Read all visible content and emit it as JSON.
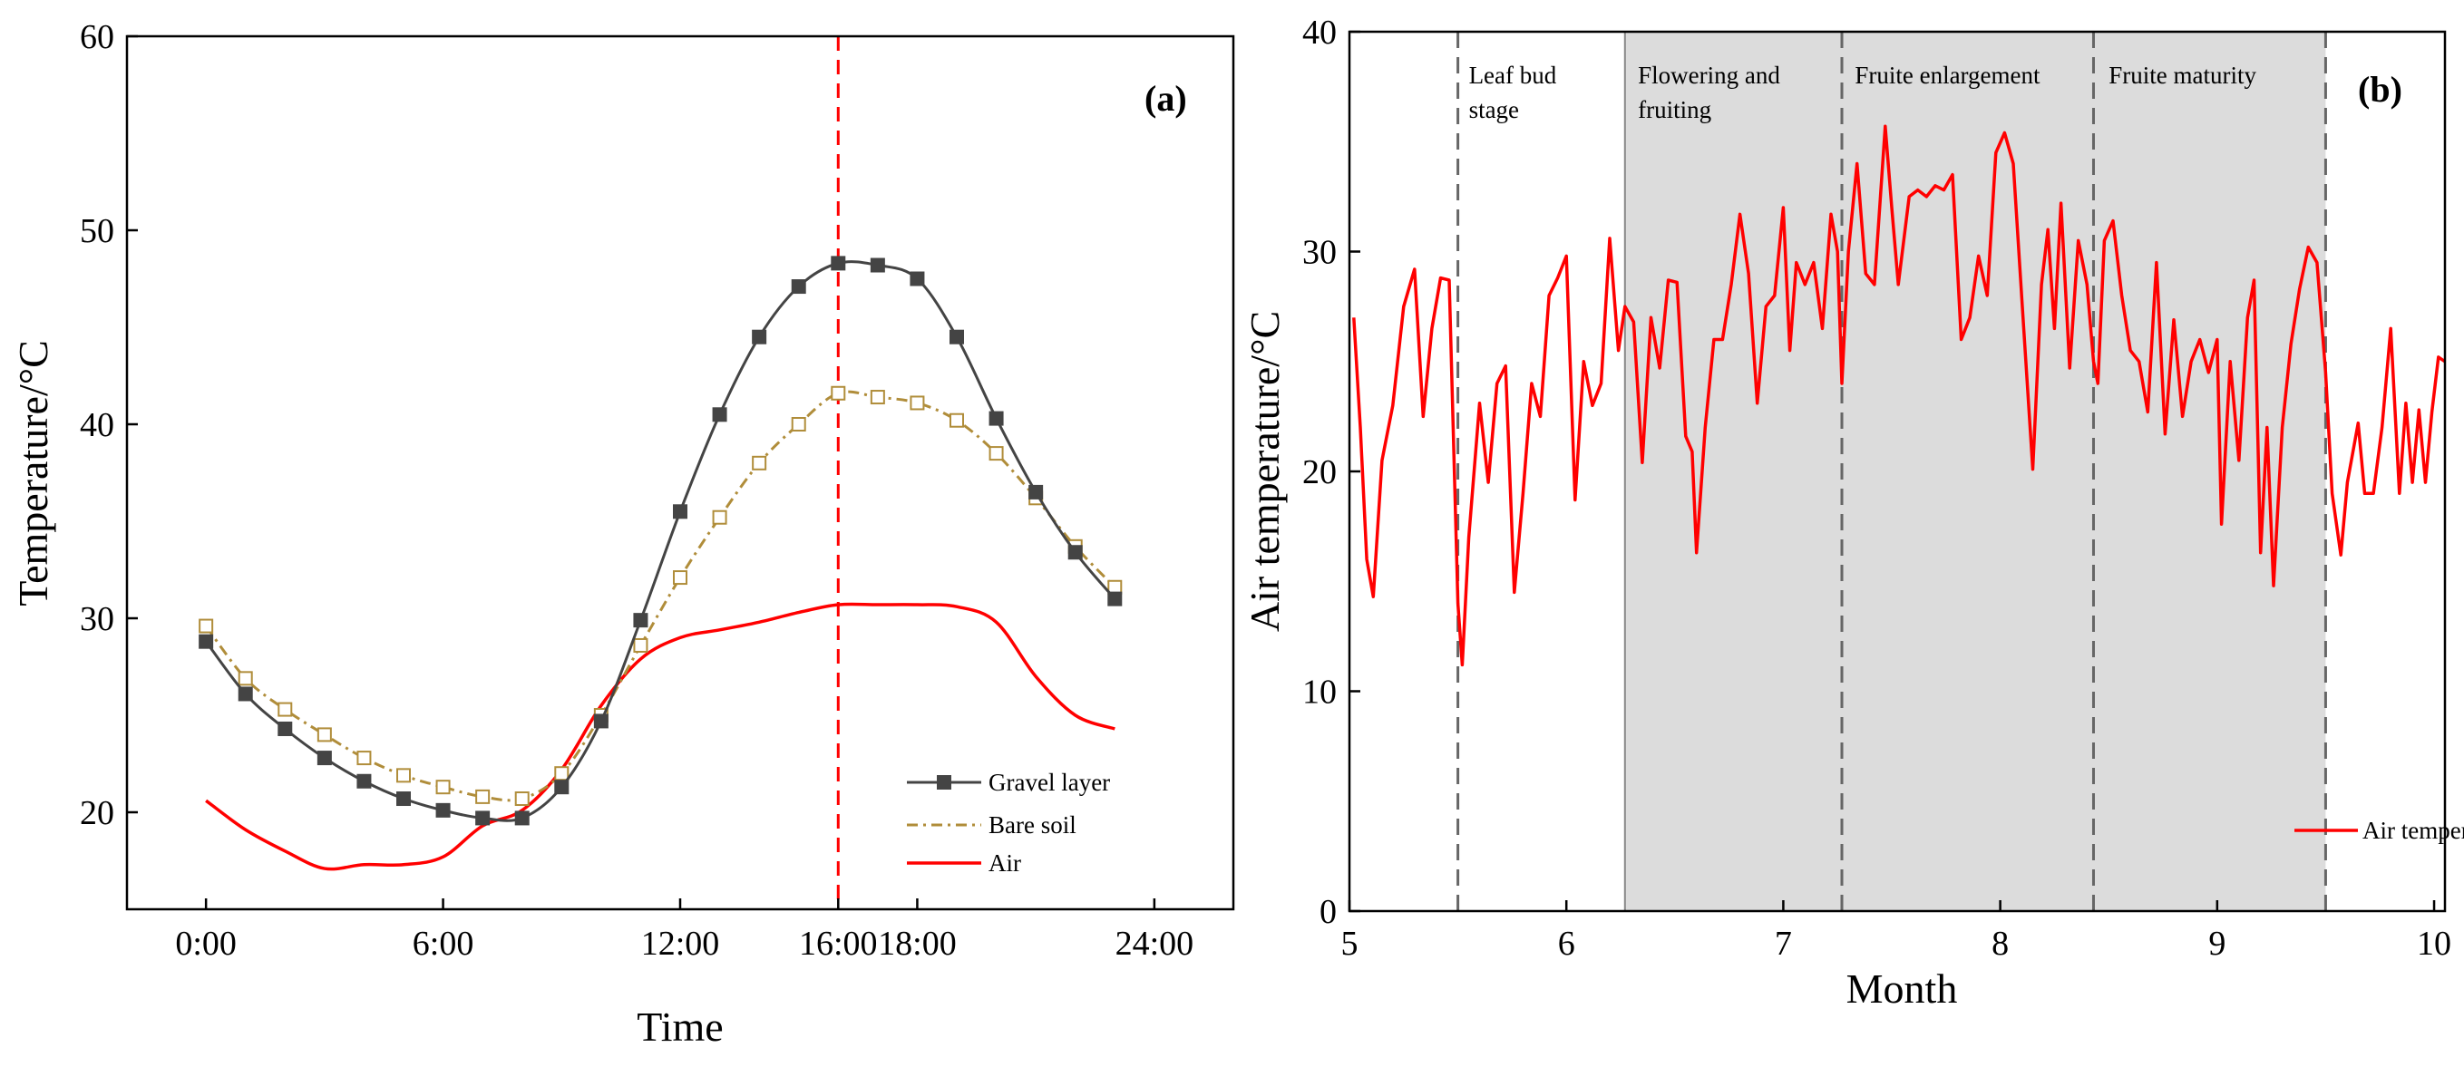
{
  "chart_data": [
    {
      "type": "line",
      "panel_label": "(a)",
      "xlabel": "Time",
      "ylabel": "Temperature/°C",
      "xlim": [
        -2,
        26
      ],
      "ylim": [
        15,
        60
      ],
      "x_ticks": [
        {
          "value": 0,
          "label": "0:00"
        },
        {
          "value": 6,
          "label": "6:00"
        },
        {
          "value": 12,
          "label": "12:00"
        },
        {
          "value": 16,
          "label": "16:00",
          "color": "#ff0000"
        },
        {
          "value": 18,
          "label": "18:00"
        },
        {
          "value": 24,
          "label": "24:00"
        }
      ],
      "y_ticks": [
        20,
        30,
        40,
        50,
        60
      ],
      "vline": {
        "x": 16,
        "color": "#ff0000",
        "style": "dashed"
      },
      "x": [
        0,
        1,
        2,
        3,
        4,
        5,
        6,
        7,
        8,
        9,
        10,
        11,
        12,
        13,
        14,
        15,
        16,
        17,
        18,
        19,
        20,
        21,
        22,
        23
      ],
      "series": [
        {
          "name": "Gravel layer",
          "color": "#444444",
          "marker": "filled-square",
          "style": "solid",
          "values": [
            28.8,
            26.1,
            24.3,
            22.8,
            21.6,
            20.7,
            20.1,
            19.7,
            19.7,
            21.3,
            24.7,
            29.9,
            35.5,
            40.5,
            44.5,
            47.1,
            48.3,
            48.2,
            47.5,
            44.5,
            40.3,
            36.5,
            33.4,
            31.0
          ]
        },
        {
          "name": "Bare soil",
          "color": "#b08d3a",
          "marker": "open-square",
          "style": "dash-dot",
          "values": [
            29.6,
            26.9,
            25.3,
            24.0,
            22.8,
            21.9,
            21.3,
            20.8,
            20.7,
            22.0,
            25.0,
            28.6,
            32.1,
            35.2,
            38.0,
            40.0,
            41.6,
            41.4,
            41.1,
            40.2,
            38.5,
            36.2,
            33.7,
            31.6
          ]
        },
        {
          "name": "Air",
          "color": "#ff0000",
          "marker": "none",
          "style": "solid",
          "values": [
            20.6,
            19.1,
            18.0,
            17.1,
            17.3,
            17.3,
            17.7,
            19.3,
            20.1,
            22.2,
            25.5,
            27.9,
            29.0,
            29.4,
            29.8,
            30.3,
            30.7,
            30.7,
            30.7,
            30.6,
            29.8,
            27.0,
            25.0,
            24.3
          ]
        }
      ]
    },
    {
      "type": "line",
      "panel_label": "(b)",
      "xlabel": "Month",
      "ylabel": "Air temperature/°C",
      "xlim": [
        5,
        10.05
      ],
      "ylim": [
        0,
        40
      ],
      "x_ticks": [
        5,
        6,
        7,
        8,
        9,
        10
      ],
      "y_ticks": [
        0,
        10,
        20,
        30,
        40
      ],
      "stage_boundaries": [
        5.5,
        6.27,
        7.27,
        8.43,
        9.5
      ],
      "shaded_region": [
        6.27,
        9.5
      ],
      "stages": [
        {
          "label_lines": [
            "Leaf bud",
            "stage"
          ],
          "x": 5.55
        },
        {
          "label_lines": [
            "Flowering and",
            "fruiting"
          ],
          "x": 6.33
        },
        {
          "label_lines": [
            "Fruite enlargement"
          ],
          "x": 7.33
        },
        {
          "label_lines": [
            "Fruite maturity"
          ],
          "x": 8.5
        }
      ],
      "series": [
        {
          "name": "Air temperature",
          "color": "#ff0000",
          "points": [
            [
              5.02,
              27.0
            ],
            [
              5.05,
              22.0
            ],
            [
              5.08,
              16.0
            ],
            [
              5.11,
              14.3
            ],
            [
              5.15,
              20.5
            ],
            [
              5.2,
              23.0
            ],
            [
              5.25,
              27.5
            ],
            [
              5.3,
              29.2
            ],
            [
              5.34,
              22.5
            ],
            [
              5.38,
              26.5
            ],
            [
              5.42,
              28.8
            ],
            [
              5.46,
              28.7
            ],
            [
              5.5,
              14.0
            ],
            [
              5.52,
              11.2
            ],
            [
              5.55,
              17.0
            ],
            [
              5.6,
              23.1
            ],
            [
              5.64,
              19.5
            ],
            [
              5.68,
              24.0
            ],
            [
              5.72,
              24.8
            ],
            [
              5.76,
              14.5
            ],
            [
              5.8,
              19.0
            ],
            [
              5.84,
              24.0
            ],
            [
              5.88,
              22.5
            ],
            [
              5.92,
              28.0
            ],
            [
              5.96,
              28.8
            ],
            [
              6.0,
              29.8
            ],
            [
              6.04,
              18.7
            ],
            [
              6.08,
              25.0
            ],
            [
              6.12,
              23.0
            ],
            [
              6.16,
              24.0
            ],
            [
              6.2,
              30.6
            ],
            [
              6.24,
              25.5
            ],
            [
              6.27,
              27.5
            ],
            [
              6.31,
              26.8
            ],
            [
              6.35,
              20.4
            ],
            [
              6.39,
              27.0
            ],
            [
              6.43,
              24.7
            ],
            [
              6.47,
              28.7
            ],
            [
              6.51,
              28.6
            ],
            [
              6.55,
              21.6
            ],
            [
              6.58,
              20.9
            ],
            [
              6.6,
              16.3
            ],
            [
              6.64,
              22.0
            ],
            [
              6.68,
              26.0
            ],
            [
              6.72,
              26.0
            ],
            [
              6.76,
              28.5
            ],
            [
              6.8,
              31.7
            ],
            [
              6.84,
              29.0
            ],
            [
              6.88,
              23.1
            ],
            [
              6.92,
              27.5
            ],
            [
              6.96,
              28.0
            ],
            [
              7.0,
              32.0
            ],
            [
              7.03,
              25.5
            ],
            [
              7.06,
              29.5
            ],
            [
              7.1,
              28.5
            ],
            [
              7.14,
              29.5
            ],
            [
              7.18,
              26.5
            ],
            [
              7.22,
              31.7
            ],
            [
              7.25,
              30.0
            ],
            [
              7.27,
              24.0
            ],
            [
              7.3,
              30.0
            ],
            [
              7.34,
              34.0
            ],
            [
              7.38,
              29.0
            ],
            [
              7.42,
              28.5
            ],
            [
              7.47,
              35.7
            ],
            [
              7.5,
              32.0
            ],
            [
              7.53,
              28.5
            ],
            [
              7.58,
              32.5
            ],
            [
              7.62,
              32.8
            ],
            [
              7.66,
              32.5
            ],
            [
              7.7,
              33.0
            ],
            [
              7.74,
              32.8
            ],
            [
              7.78,
              33.5
            ],
            [
              7.82,
              26.0
            ],
            [
              7.86,
              27.0
            ],
            [
              7.9,
              29.8
            ],
            [
              7.94,
              28.0
            ],
            [
              7.98,
              34.5
            ],
            [
              8.02,
              35.4
            ],
            [
              8.06,
              34.0
            ],
            [
              8.1,
              27.8
            ],
            [
              8.15,
              20.1
            ],
            [
              8.19,
              28.5
            ],
            [
              8.22,
              31.0
            ],
            [
              8.25,
              26.5
            ],
            [
              8.28,
              32.2
            ],
            [
              8.32,
              24.7
            ],
            [
              8.36,
              30.5
            ],
            [
              8.4,
              28.5
            ],
            [
              8.43,
              25.0
            ],
            [
              8.45,
              24.0
            ],
            [
              8.48,
              30.5
            ],
            [
              8.52,
              31.4
            ],
            [
              8.56,
              28.0
            ],
            [
              8.6,
              25.5
            ],
            [
              8.64,
              25.0
            ],
            [
              8.68,
              22.7
            ],
            [
              8.72,
              29.5
            ],
            [
              8.76,
              21.7
            ],
            [
              8.8,
              26.9
            ],
            [
              8.84,
              22.5
            ],
            [
              8.88,
              25.0
            ],
            [
              8.92,
              26.0
            ],
            [
              8.96,
              24.5
            ],
            [
              9.0,
              26.0
            ],
            [
              9.02,
              17.6
            ],
            [
              9.06,
              25.0
            ],
            [
              9.1,
              20.5
            ],
            [
              9.14,
              27.0
            ],
            [
              9.17,
              28.7
            ],
            [
              9.2,
              16.3
            ],
            [
              9.23,
              22.0
            ],
            [
              9.26,
              14.8
            ],
            [
              9.3,
              22.0
            ],
            [
              9.34,
              25.8
            ],
            [
              9.38,
              28.3
            ],
            [
              9.42,
              30.2
            ],
            [
              9.46,
              29.5
            ],
            [
              9.5,
              24.5
            ],
            [
              9.53,
              19.0
            ],
            [
              9.57,
              16.2
            ],
            [
              9.6,
              19.5
            ],
            [
              9.65,
              22.2
            ],
            [
              9.68,
              19.0
            ],
            [
              9.72,
              19.0
            ],
            [
              9.76,
              22.0
            ],
            [
              9.8,
              26.5
            ],
            [
              9.84,
              19.0
            ],
            [
              9.87,
              23.1
            ],
            [
              9.9,
              19.5
            ],
            [
              9.93,
              22.8
            ],
            [
              9.96,
              19.5
            ],
            [
              9.99,
              22.7
            ],
            [
              10.02,
              25.2
            ],
            [
              10.05,
              25.0
            ]
          ]
        }
      ]
    }
  ],
  "legend_b": {
    "label": "Air temperature"
  }
}
